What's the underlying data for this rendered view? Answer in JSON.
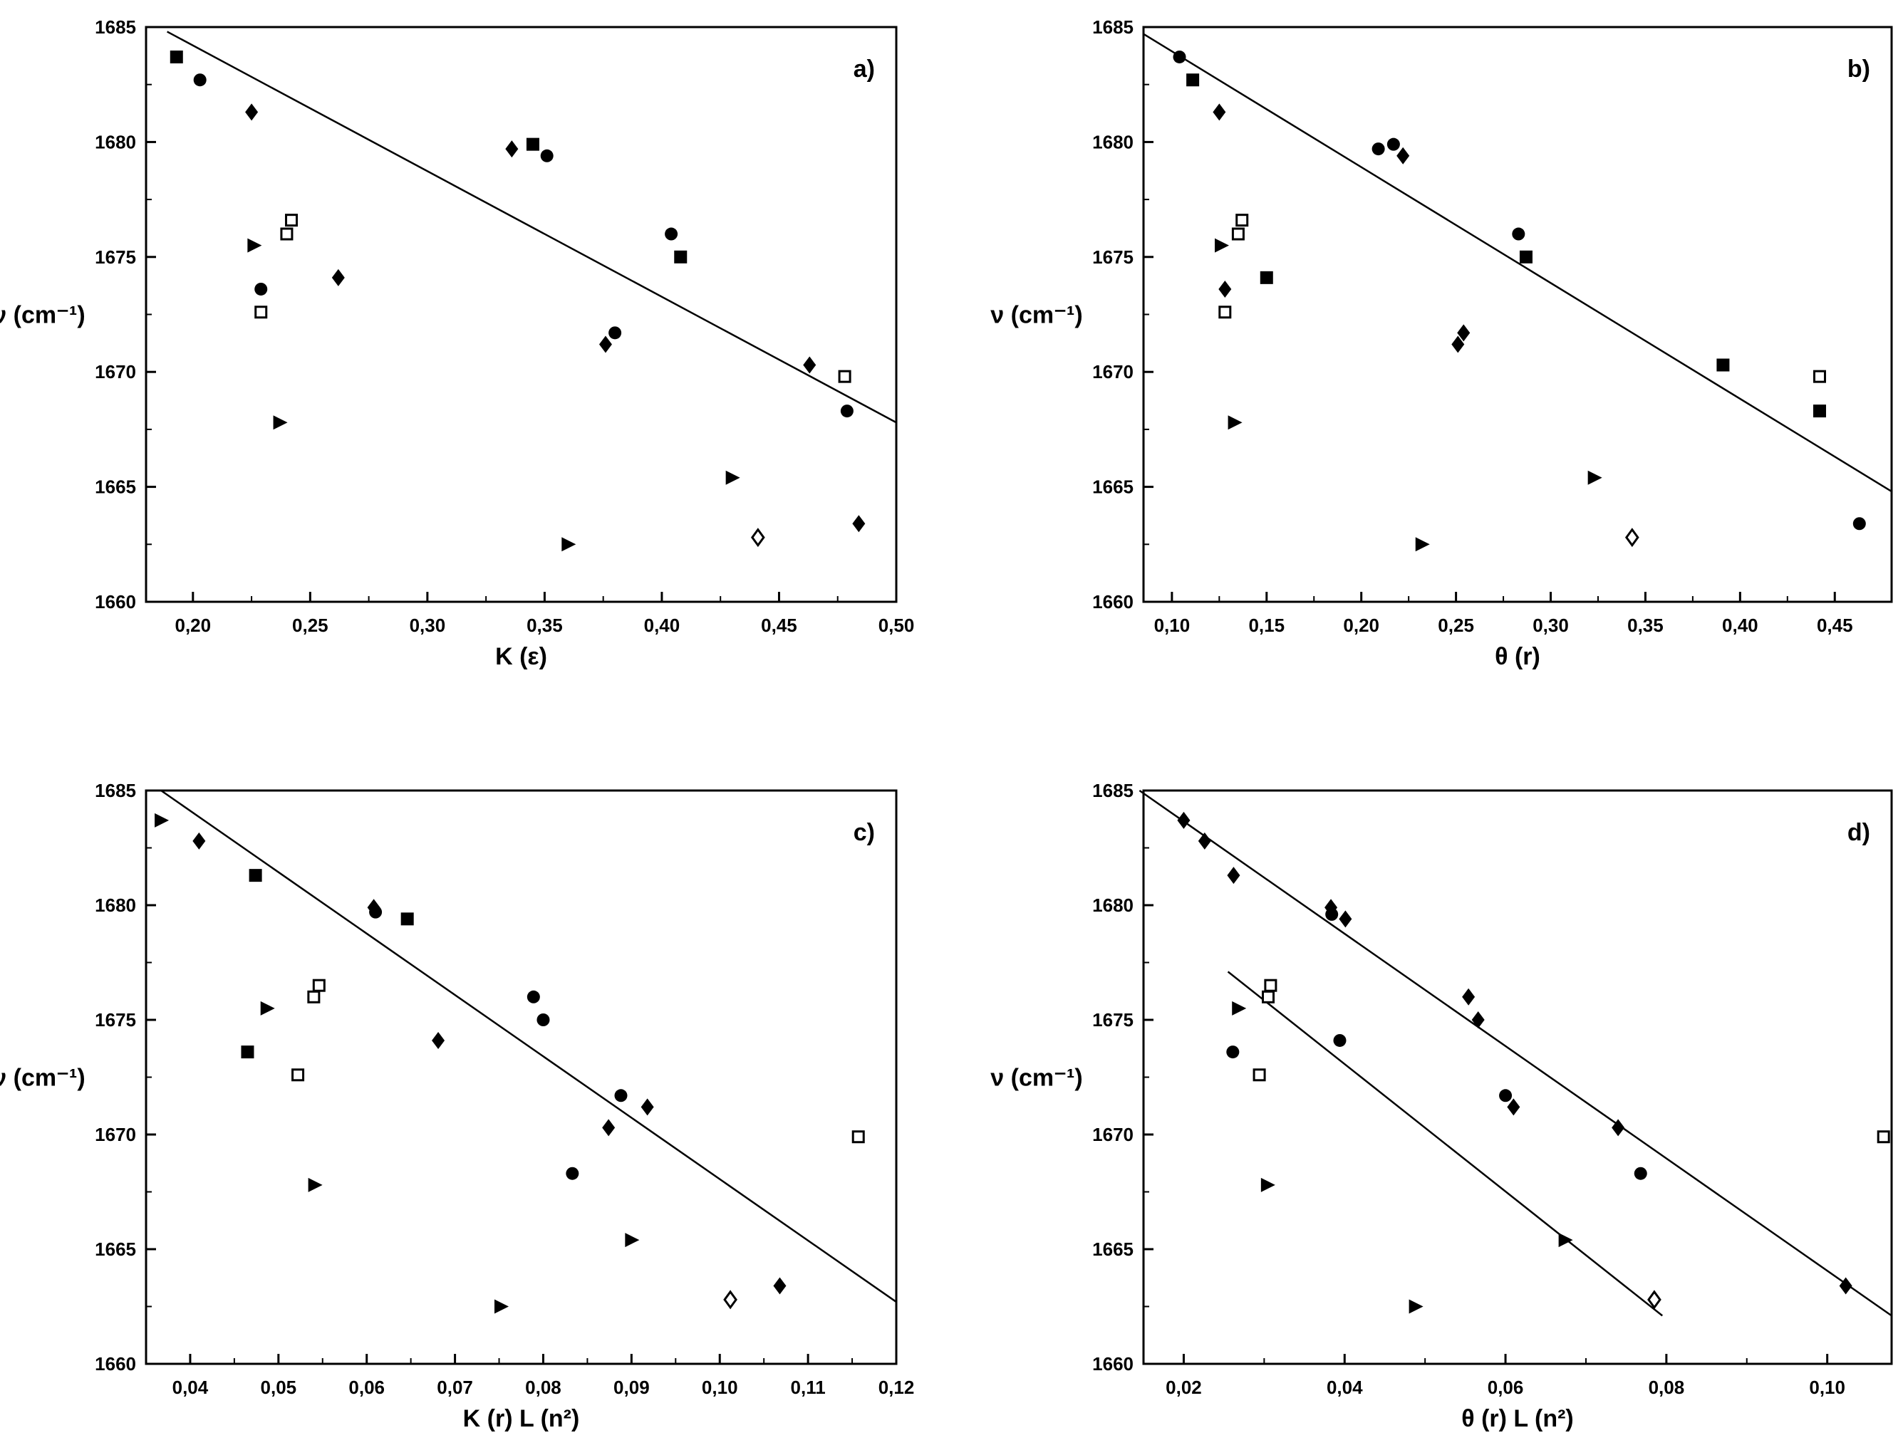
{
  "chart_data": [
    {
      "type": "scatter",
      "panel_label": "a)",
      "xlabel": "K (ε)",
      "ylabel": "ν (cm⁻¹)",
      "xlim": [
        0.18,
        0.5
      ],
      "ylim": [
        1660,
        1685
      ],
      "xticks": [
        {
          "v": 0.2,
          "label": "0,20"
        },
        {
          "v": 0.25,
          "label": "0,25"
        },
        {
          "v": 0.3,
          "label": "0,30"
        },
        {
          "v": 0.35,
          "label": "0,35"
        },
        {
          "v": 0.4,
          "label": "0,40"
        },
        {
          "v": 0.45,
          "label": "0,45"
        },
        {
          "v": 0.5,
          "label": "0,50"
        }
      ],
      "yticks": [
        {
          "v": 1660,
          "label": "1660"
        },
        {
          "v": 1665,
          "label": "1665"
        },
        {
          "v": 1670,
          "label": "1670"
        },
        {
          "v": 1675,
          "label": "1675"
        },
        {
          "v": 1680,
          "label": "1680"
        },
        {
          "v": 1685,
          "label": "1685"
        }
      ],
      "points": [
        {
          "x": 0.193,
          "y": 1683.7,
          "m": "square"
        },
        {
          "x": 0.203,
          "y": 1682.7,
          "m": "circle"
        },
        {
          "x": 0.225,
          "y": 1681.3,
          "m": "diamond"
        },
        {
          "x": 0.226,
          "y": 1675.5,
          "m": "triangle"
        },
        {
          "x": 0.229,
          "y": 1673.6,
          "m": "circle"
        },
        {
          "x": 0.229,
          "y": 1672.6,
          "m": "open-square"
        },
        {
          "x": 0.24,
          "y": 1676.0,
          "m": "open-square"
        },
        {
          "x": 0.242,
          "y": 1676.6,
          "m": "open-square"
        },
        {
          "x": 0.237,
          "y": 1667.8,
          "m": "triangle"
        },
        {
          "x": 0.262,
          "y": 1674.1,
          "m": "diamond"
        },
        {
          "x": 0.336,
          "y": 1679.7,
          "m": "diamond"
        },
        {
          "x": 0.345,
          "y": 1679.9,
          "m": "square"
        },
        {
          "x": 0.351,
          "y": 1679.4,
          "m": "circle"
        },
        {
          "x": 0.36,
          "y": 1662.5,
          "m": "triangle"
        },
        {
          "x": 0.376,
          "y": 1671.2,
          "m": "diamond"
        },
        {
          "x": 0.38,
          "y": 1671.7,
          "m": "circle"
        },
        {
          "x": 0.404,
          "y": 1676.0,
          "m": "circle"
        },
        {
          "x": 0.408,
          "y": 1675.0,
          "m": "square"
        },
        {
          "x": 0.43,
          "y": 1665.4,
          "m": "triangle"
        },
        {
          "x": 0.441,
          "y": 1662.8,
          "m": "open-diamond"
        },
        {
          "x": 0.463,
          "y": 1670.3,
          "m": "diamond"
        },
        {
          "x": 0.478,
          "y": 1669.8,
          "m": "open-square"
        },
        {
          "x": 0.479,
          "y": 1668.3,
          "m": "circle"
        },
        {
          "x": 0.484,
          "y": 1663.4,
          "m": "diamond"
        }
      ],
      "lines": [
        {
          "x1": 0.189,
          "y1": 1684.8,
          "x2": 0.5,
          "y2": 1667.8
        }
      ]
    },
    {
      "type": "scatter",
      "panel_label": "b)",
      "xlabel": "θ (r)",
      "ylabel": "ν (cm⁻¹)",
      "xlim": [
        0.085,
        0.48
      ],
      "ylim": [
        1660,
        1685
      ],
      "xticks": [
        {
          "v": 0.1,
          "label": "0,10"
        },
        {
          "v": 0.15,
          "label": "0,15"
        },
        {
          "v": 0.2,
          "label": "0,20"
        },
        {
          "v": 0.25,
          "label": "0,25"
        },
        {
          "v": 0.3,
          "label": "0,30"
        },
        {
          "v": 0.35,
          "label": "0,35"
        },
        {
          "v": 0.4,
          "label": "0,40"
        },
        {
          "v": 0.45,
          "label": "0,45"
        }
      ],
      "yticks": [
        {
          "v": 1660,
          "label": "1660"
        },
        {
          "v": 1665,
          "label": "1665"
        },
        {
          "v": 1670,
          "label": "1670"
        },
        {
          "v": 1675,
          "label": "1675"
        },
        {
          "v": 1680,
          "label": "1680"
        },
        {
          "v": 1685,
          "label": "1685"
        }
      ],
      "points": [
        {
          "x": 0.104,
          "y": 1683.7,
          "m": "circle"
        },
        {
          "x": 0.111,
          "y": 1682.7,
          "m": "square"
        },
        {
          "x": 0.125,
          "y": 1681.3,
          "m": "diamond"
        },
        {
          "x": 0.126,
          "y": 1675.5,
          "m": "triangle"
        },
        {
          "x": 0.128,
          "y": 1673.6,
          "m": "diamond"
        },
        {
          "x": 0.128,
          "y": 1672.6,
          "m": "open-square"
        },
        {
          "x": 0.135,
          "y": 1676.0,
          "m": "open-square"
        },
        {
          "x": 0.137,
          "y": 1676.6,
          "m": "open-square"
        },
        {
          "x": 0.133,
          "y": 1667.8,
          "m": "triangle"
        },
        {
          "x": 0.15,
          "y": 1674.1,
          "m": "square"
        },
        {
          "x": 0.209,
          "y": 1679.7,
          "m": "circle"
        },
        {
          "x": 0.217,
          "y": 1679.9,
          "m": "circle"
        },
        {
          "x": 0.222,
          "y": 1679.4,
          "m": "diamond"
        },
        {
          "x": 0.232,
          "y": 1662.5,
          "m": "triangle"
        },
        {
          "x": 0.251,
          "y": 1671.2,
          "m": "diamond"
        },
        {
          "x": 0.254,
          "y": 1671.7,
          "m": "diamond"
        },
        {
          "x": 0.283,
          "y": 1676.0,
          "m": "circle"
        },
        {
          "x": 0.287,
          "y": 1675.0,
          "m": "square"
        },
        {
          "x": 0.323,
          "y": 1665.4,
          "m": "triangle"
        },
        {
          "x": 0.343,
          "y": 1662.8,
          "m": "open-diamond"
        },
        {
          "x": 0.391,
          "y": 1670.3,
          "m": "square"
        },
        {
          "x": 0.442,
          "y": 1669.8,
          "m": "open-square"
        },
        {
          "x": 0.442,
          "y": 1668.3,
          "m": "square"
        },
        {
          "x": 0.463,
          "y": 1663.4,
          "m": "circle"
        }
      ],
      "lines": [
        {
          "x1": 0.085,
          "y1": 1684.7,
          "x2": 0.48,
          "y2": 1664.8
        }
      ]
    },
    {
      "type": "scatter",
      "panel_label": "c)",
      "xlabel": "K (r) L (n²)",
      "ylabel": "ν (cm⁻¹)",
      "xlim": [
        0.035,
        0.12
      ],
      "ylim": [
        1660,
        1685
      ],
      "xticks": [
        {
          "v": 0.04,
          "label": "0,04"
        },
        {
          "v": 0.05,
          "label": "0,05"
        },
        {
          "v": 0.06,
          "label": "0,06"
        },
        {
          "v": 0.07,
          "label": "0,07"
        },
        {
          "v": 0.08,
          "label": "0,08"
        },
        {
          "v": 0.09,
          "label": "0,09"
        },
        {
          "v": 0.1,
          "label": "0,10"
        },
        {
          "v": 0.11,
          "label": "0,11"
        },
        {
          "v": 0.12,
          "label": "0,12"
        }
      ],
      "yticks": [
        {
          "v": 1660,
          "label": "1660"
        },
        {
          "v": 1665,
          "label": "1665"
        },
        {
          "v": 1670,
          "label": "1670"
        },
        {
          "v": 1675,
          "label": "1675"
        },
        {
          "v": 1680,
          "label": "1680"
        },
        {
          "v": 1685,
          "label": "1685"
        }
      ],
      "points": [
        {
          "x": 0.0367,
          "y": 1683.7,
          "m": "triangle"
        },
        {
          "x": 0.041,
          "y": 1682.8,
          "m": "diamond"
        },
        {
          "x": 0.0474,
          "y": 1681.3,
          "m": "square"
        },
        {
          "x": 0.0465,
          "y": 1673.6,
          "m": "square"
        },
        {
          "x": 0.0487,
          "y": 1675.5,
          "m": "triangle"
        },
        {
          "x": 0.0522,
          "y": 1672.6,
          "m": "open-square"
        },
        {
          "x": 0.054,
          "y": 1676.0,
          "m": "open-square"
        },
        {
          "x": 0.0546,
          "y": 1676.5,
          "m": "open-square"
        },
        {
          "x": 0.0541,
          "y": 1667.8,
          "m": "triangle"
        },
        {
          "x": 0.0608,
          "y": 1679.9,
          "m": "diamond"
        },
        {
          "x": 0.061,
          "y": 1679.7,
          "m": "circle"
        },
        {
          "x": 0.0646,
          "y": 1679.4,
          "m": "square"
        },
        {
          "x": 0.0681,
          "y": 1674.1,
          "m": "diamond"
        },
        {
          "x": 0.0752,
          "y": 1662.5,
          "m": "triangle"
        },
        {
          "x": 0.0789,
          "y": 1676.0,
          "m": "circle"
        },
        {
          "x": 0.08,
          "y": 1675.0,
          "m": "circle"
        },
        {
          "x": 0.0833,
          "y": 1668.3,
          "m": "circle"
        },
        {
          "x": 0.0874,
          "y": 1670.3,
          "m": "diamond"
        },
        {
          "x": 0.0888,
          "y": 1671.7,
          "m": "circle"
        },
        {
          "x": 0.09,
          "y": 1665.4,
          "m": "triangle"
        },
        {
          "x": 0.0918,
          "y": 1671.2,
          "m": "diamond"
        },
        {
          "x": 0.1012,
          "y": 1662.8,
          "m": "open-diamond"
        },
        {
          "x": 0.1068,
          "y": 1663.4,
          "m": "diamond"
        },
        {
          "x": 0.1157,
          "y": 1669.9,
          "m": "open-square"
        }
      ],
      "lines": [
        {
          "x1": 0.0367,
          "y1": 1685.0,
          "x2": 0.12,
          "y2": 1662.7
        }
      ]
    },
    {
      "type": "scatter",
      "panel_label": "d)",
      "xlabel": "θ (r) L (n²)",
      "ylabel": "ν (cm⁻¹)",
      "xlim": [
        0.015,
        0.108
      ],
      "ylim": [
        1660,
        1685
      ],
      "xticks": [
        {
          "v": 0.02,
          "label": "0,02"
        },
        {
          "v": 0.04,
          "label": "0,04"
        },
        {
          "v": 0.06,
          "label": "0,06"
        },
        {
          "v": 0.08,
          "label": "0,08"
        },
        {
          "v": 0.1,
          "label": "0,10"
        }
      ],
      "yticks": [
        {
          "v": 1660,
          "label": "1660"
        },
        {
          "v": 1665,
          "label": "1665"
        },
        {
          "v": 1670,
          "label": "1670"
        },
        {
          "v": 1675,
          "label": "1675"
        },
        {
          "v": 1680,
          "label": "1680"
        },
        {
          "v": 1685,
          "label": "1685"
        }
      ],
      "points": [
        {
          "x": 0.02,
          "y": 1683.7,
          "m": "diamond"
        },
        {
          "x": 0.0226,
          "y": 1682.8,
          "m": "diamond"
        },
        {
          "x": 0.0262,
          "y": 1681.3,
          "m": "diamond"
        },
        {
          "x": 0.0261,
          "y": 1673.6,
          "m": "circle"
        },
        {
          "x": 0.0268,
          "y": 1675.5,
          "m": "triangle"
        },
        {
          "x": 0.0294,
          "y": 1672.6,
          "m": "open-square"
        },
        {
          "x": 0.0305,
          "y": 1676.0,
          "m": "open-square"
        },
        {
          "x": 0.0308,
          "y": 1676.5,
          "m": "open-square"
        },
        {
          "x": 0.0304,
          "y": 1667.8,
          "m": "triangle"
        },
        {
          "x": 0.0383,
          "y": 1679.9,
          "m": "diamond"
        },
        {
          "x": 0.0384,
          "y": 1679.6,
          "m": "circle"
        },
        {
          "x": 0.0394,
          "y": 1674.1,
          "m": "circle"
        },
        {
          "x": 0.0401,
          "y": 1679.4,
          "m": "diamond"
        },
        {
          "x": 0.0488,
          "y": 1662.5,
          "m": "triangle"
        },
        {
          "x": 0.0554,
          "y": 1676.0,
          "m": "diamond"
        },
        {
          "x": 0.0566,
          "y": 1675.0,
          "m": "diamond"
        },
        {
          "x": 0.06,
          "y": 1671.7,
          "m": "circle"
        },
        {
          "x": 0.061,
          "y": 1671.2,
          "m": "diamond"
        },
        {
          "x": 0.0674,
          "y": 1665.4,
          "m": "triangle"
        },
        {
          "x": 0.074,
          "y": 1670.3,
          "m": "diamond"
        },
        {
          "x": 0.0768,
          "y": 1668.3,
          "m": "circle"
        },
        {
          "x": 0.0785,
          "y": 1662.8,
          "m": "open-diamond"
        },
        {
          "x": 0.1023,
          "y": 1663.4,
          "m": "diamond"
        },
        {
          "x": 0.107,
          "y": 1669.9,
          "m": "open-square"
        }
      ],
      "lines": [
        {
          "x1": 0.0145,
          "y1": 1685.0,
          "x2": 0.108,
          "y2": 1662.1
        },
        {
          "x1": 0.0255,
          "y1": 1677.1,
          "x2": 0.0795,
          "y2": 1662.1
        }
      ]
    }
  ]
}
